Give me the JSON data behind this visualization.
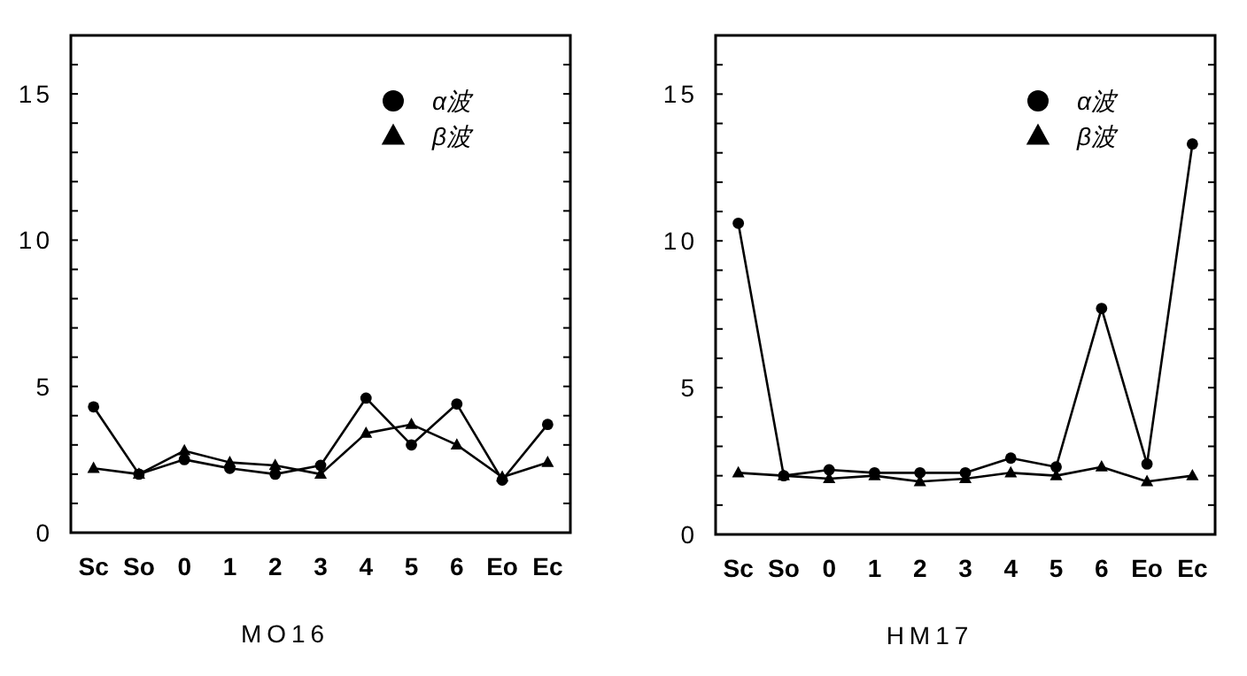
{
  "chart_data": [
    {
      "type": "line",
      "xlabel": "MO16",
      "categories": [
        "Sc",
        "So",
        "0",
        "1",
        "2",
        "3",
        "4",
        "5",
        "6",
        "Eo",
        "Ec"
      ],
      "ylim": [
        0,
        17
      ],
      "yticks": [
        0,
        {
          "value": 1,
          "label": null
        },
        {
          "value": 2,
          "label": null
        },
        {
          "value": 3,
          "label": null
        },
        {
          "value": 4,
          "label": null
        },
        5,
        {
          "value": 6,
          "label": null
        },
        {
          "value": 7,
          "label": null
        },
        {
          "value": 8,
          "label": null
        },
        {
          "value": 9,
          "label": null
        },
        10,
        {
          "value": 11,
          "label": null
        },
        {
          "value": 12,
          "label": null
        },
        {
          "value": 13,
          "label": null
        },
        {
          "value": 14,
          "label": null
        },
        15,
        {
          "value": 16,
          "label": null
        }
      ],
      "grid": false,
      "legend": "top right",
      "series": [
        {
          "name": "α波",
          "color": "#000000",
          "marker": "circle",
          "values": [
            4.3,
            2.0,
            2.5,
            2.2,
            2.0,
            2.3,
            4.6,
            3.0,
            4.4,
            1.8,
            3.7
          ]
        },
        {
          "name": "β波",
          "color": "#000000",
          "marker": "triangle",
          "values": [
            2.2,
            2.0,
            2.8,
            2.4,
            2.3,
            2.0,
            3.4,
            3.7,
            3.0,
            1.9,
            2.4
          ]
        }
      ]
    },
    {
      "type": "line",
      "xlabel": "HM17",
      "categories": [
        "Sc",
        "So",
        "0",
        "1",
        "2",
        "3",
        "4",
        "5",
        "6",
        "Eo",
        "Ec"
      ],
      "ylim": [
        0,
        17
      ],
      "yticks": [
        0,
        {
          "value": 1,
          "label": null
        },
        {
          "value": 2,
          "label": null
        },
        {
          "value": 3,
          "label": null
        },
        {
          "value": 4,
          "label": null
        },
        5,
        {
          "value": 6,
          "label": null
        },
        {
          "value": 7,
          "label": null
        },
        {
          "value": 8,
          "label": null
        },
        {
          "value": 9,
          "label": null
        },
        10,
        {
          "value": 11,
          "label": null
        },
        {
          "value": 12,
          "label": null
        },
        {
          "value": 13,
          "label": null
        },
        {
          "value": 14,
          "label": null
        },
        15,
        {
          "value": 16,
          "label": null
        }
      ],
      "grid": false,
      "legend": "top right",
      "series": [
        {
          "name": "α波",
          "color": "#000000",
          "marker": "circle",
          "values": [
            10.6,
            2.0,
            2.2,
            2.1,
            2.1,
            2.1,
            2.6,
            2.3,
            7.7,
            2.4,
            13.3
          ]
        },
        {
          "name": "β波",
          "color": "#000000",
          "marker": "triangle",
          "values": [
            2.1,
            2.0,
            1.9,
            2.0,
            1.8,
            1.9,
            2.1,
            2.0,
            2.3,
            1.8,
            2.0
          ]
        }
      ]
    }
  ]
}
